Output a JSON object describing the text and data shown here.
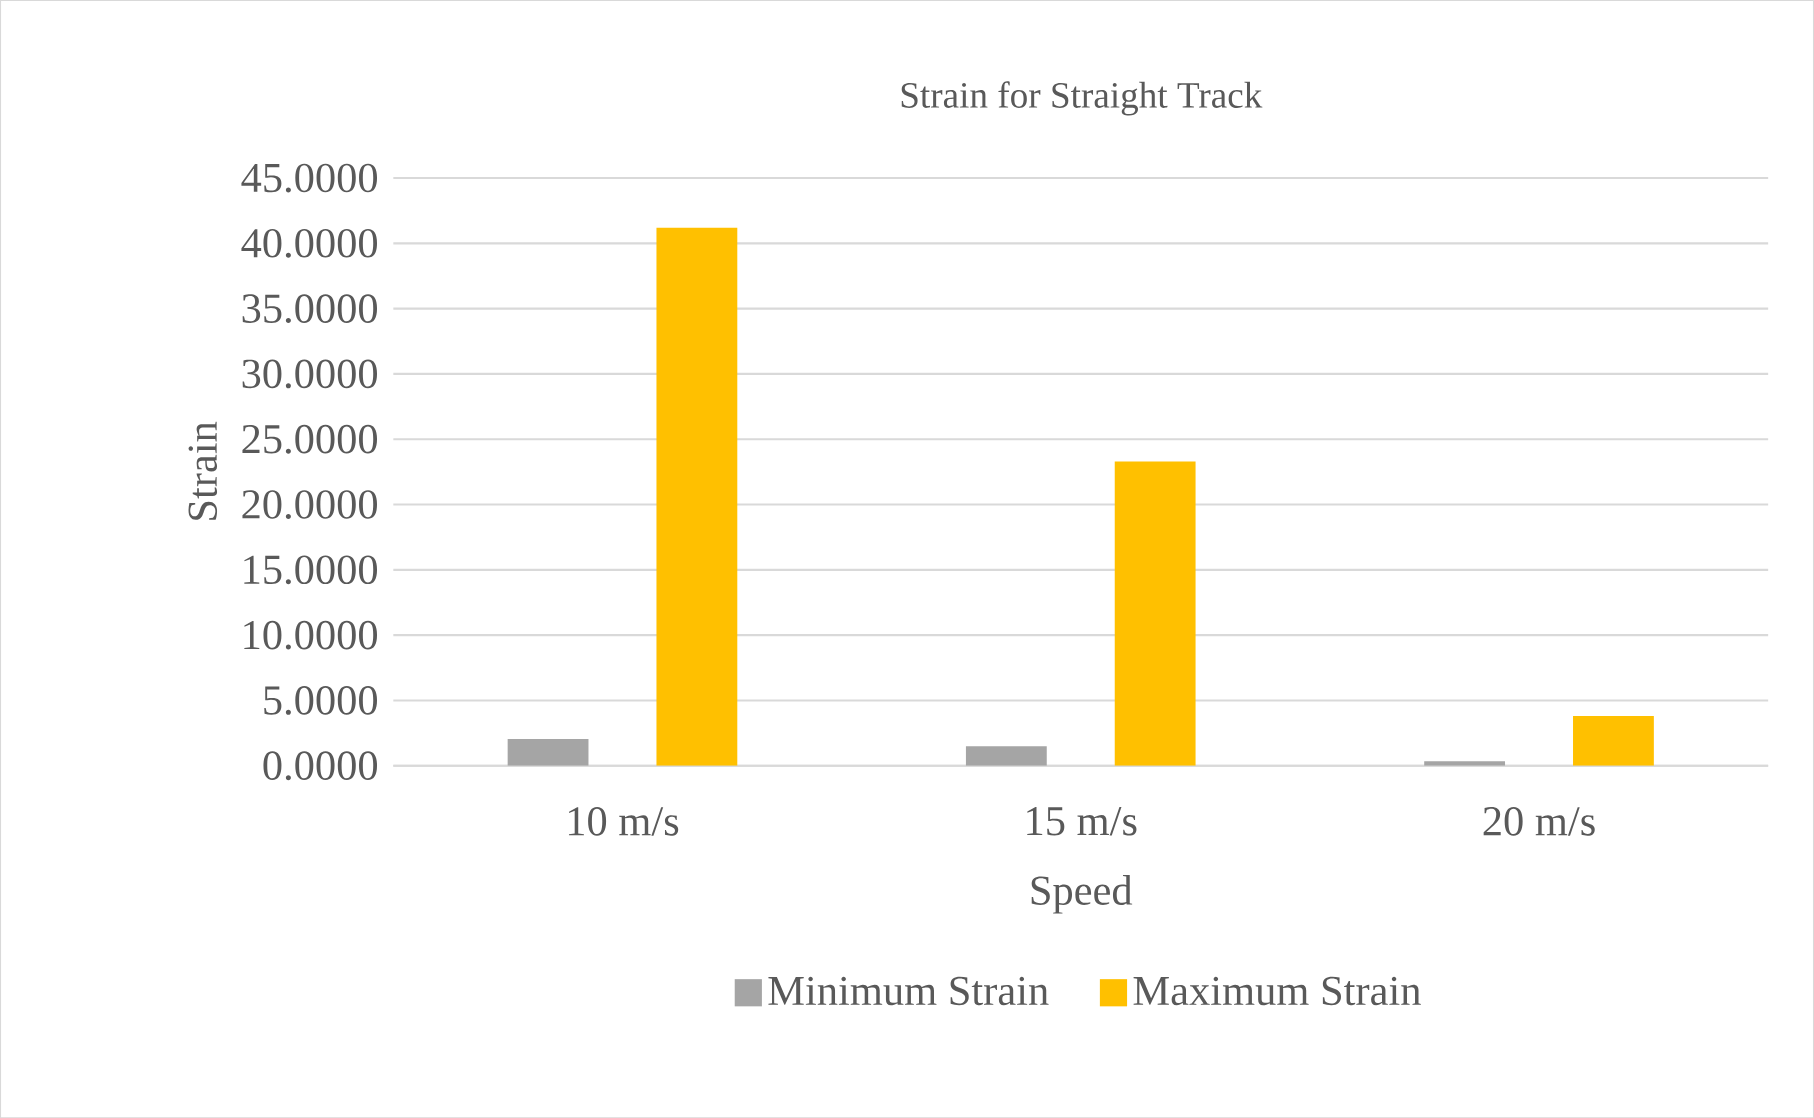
{
  "chart_data": {
    "type": "bar",
    "title": "Strain for Straight Track",
    "xlabel": "Speed",
    "ylabel": "Strain",
    "categories": [
      "10 m/s",
      "15 m/s",
      "20 m/s"
    ],
    "series": [
      {
        "name": "Minimum Strain",
        "color": "#a5a5a5",
        "values": [
          2.05,
          1.5,
          0.35
        ]
      },
      {
        "name": "Maximum Strain",
        "color": "#ffc000",
        "values": [
          41.2,
          23.3,
          3.8
        ]
      }
    ],
    "ylim": [
      0,
      45
    ],
    "yticks": [
      {
        "value": 0,
        "label": "0.0000"
      },
      {
        "value": 5,
        "label": "5.0000"
      },
      {
        "value": 10,
        "label": "10.0000"
      },
      {
        "value": 15,
        "label": "15.0000"
      },
      {
        "value": 20,
        "label": "20.0000"
      },
      {
        "value": 25,
        "label": "25.0000"
      },
      {
        "value": 30,
        "label": "30.0000"
      },
      {
        "value": 35,
        "label": "35.0000"
      },
      {
        "value": 40,
        "label": "40.0000"
      },
      {
        "value": 45,
        "label": "45.0000"
      }
    ],
    "grid": "y",
    "legend": "bottom"
  }
}
